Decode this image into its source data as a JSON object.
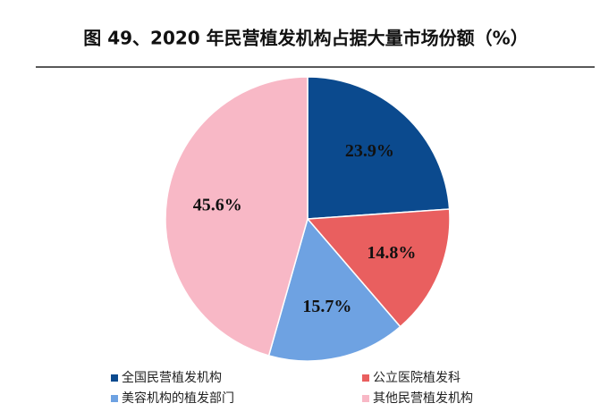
{
  "chart_data": {
    "type": "pie",
    "title": "图 49、2020 年民营植发机构占据大量市场份额（%）",
    "categories": [
      "全国民营植发机构",
      "公立医院植发科",
      "美容机构的植发部门",
      "其他民营植发机构"
    ],
    "values": [
      23.9,
      14.8,
      15.7,
      45.6
    ],
    "value_labels": [
      "23.9%",
      "14.8%",
      "15.7%",
      "45.6%"
    ],
    "colors": [
      "#0b4a8e",
      "#e95f5f",
      "#6ea2e2",
      "#f8b8c6"
    ]
  }
}
